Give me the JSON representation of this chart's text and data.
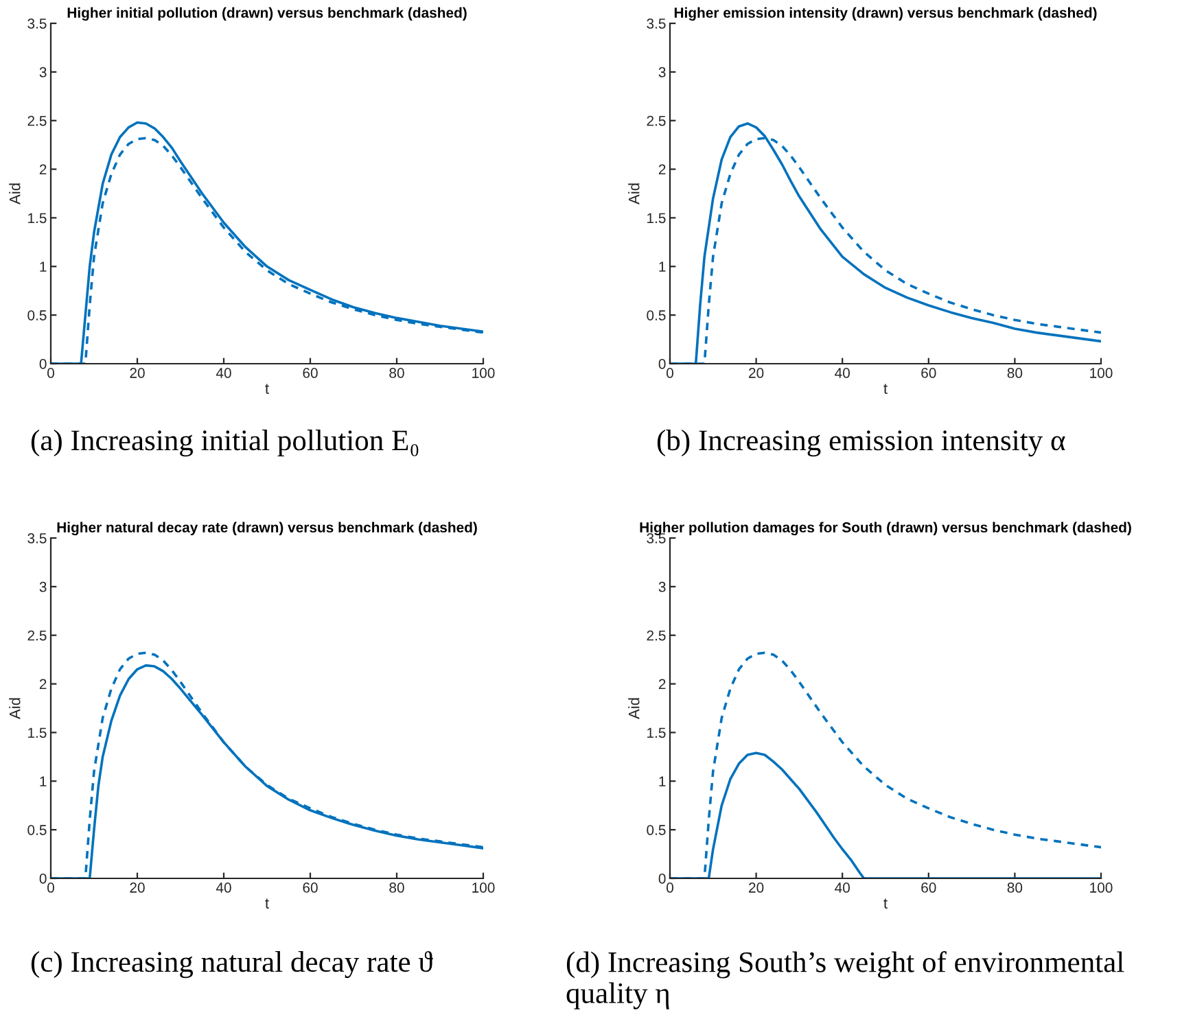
{
  "chart_data": [
    {
      "type": "line",
      "title": "Higher initial pollution (drawn) versus benchmark (dashed)",
      "xlabel": "t",
      "ylabel": "Aid",
      "xlim": [
        0,
        100
      ],
      "ylim": [
        0,
        3.5
      ],
      "xticks": [
        0,
        20,
        40,
        60,
        80,
        100
      ],
      "yticks": [
        0,
        0.5,
        1,
        1.5,
        2,
        2.5,
        3,
        3.5
      ],
      "grid": false,
      "annotations": [
        "(a) Increasing initial pollution E₀"
      ],
      "series": [
        {
          "color": "#0072bd",
          "line_style": "solid",
          "x": [
            0,
            7,
            8,
            9,
            10,
            12,
            14,
            16,
            18,
            20,
            22,
            24,
            26,
            28,
            30,
            35,
            40,
            45,
            50,
            55,
            60,
            65,
            70,
            75,
            80,
            85,
            90,
            95,
            100
          ],
          "values": [
            0,
            0,
            0.5,
            1.0,
            1.35,
            1.85,
            2.15,
            2.33,
            2.43,
            2.48,
            2.47,
            2.42,
            2.33,
            2.22,
            2.08,
            1.75,
            1.45,
            1.2,
            1.0,
            0.86,
            0.76,
            0.66,
            0.58,
            0.52,
            0.47,
            0.43,
            0.39,
            0.36,
            0.33
          ]
        },
        {
          "color": "#0072bd",
          "line_style": "dashed",
          "x": [
            0,
            8,
            9,
            10,
            12,
            14,
            16,
            18,
            20,
            22,
            24,
            26,
            28,
            30,
            35,
            40,
            45,
            50,
            55,
            60,
            65,
            70,
            75,
            80,
            85,
            90,
            95,
            100
          ],
          "values": [
            0,
            0,
            0.6,
            1.1,
            1.65,
            1.95,
            2.15,
            2.26,
            2.31,
            2.32,
            2.3,
            2.24,
            2.14,
            2.02,
            1.7,
            1.4,
            1.15,
            0.96,
            0.82,
            0.72,
            0.63,
            0.56,
            0.5,
            0.45,
            0.41,
            0.38,
            0.35,
            0.32
          ]
        }
      ]
    },
    {
      "type": "line",
      "title": "Higher emission intensity (drawn) versus benchmark (dashed)",
      "xlabel": "t",
      "ylabel": "Aid",
      "xlim": [
        0,
        100
      ],
      "ylim": [
        0,
        3.5
      ],
      "xticks": [
        0,
        20,
        40,
        60,
        80,
        100
      ],
      "yticks": [
        0,
        0.5,
        1,
        1.5,
        2,
        2.5,
        3,
        3.5
      ],
      "grid": false,
      "annotations": [
        "(b) Increasing emission intensity α"
      ],
      "series": [
        {
          "color": "#0072bd",
          "line_style": "solid",
          "x": [
            0,
            6,
            7,
            8,
            10,
            12,
            14,
            16,
            18,
            20,
            22,
            24,
            26,
            28,
            30,
            35,
            40,
            45,
            50,
            55,
            60,
            65,
            70,
            75,
            80,
            85,
            90,
            95,
            100
          ],
          "values": [
            0,
            0,
            0.6,
            1.1,
            1.7,
            2.1,
            2.33,
            2.44,
            2.47,
            2.43,
            2.34,
            2.2,
            2.05,
            1.88,
            1.72,
            1.38,
            1.1,
            0.92,
            0.78,
            0.68,
            0.6,
            0.53,
            0.47,
            0.42,
            0.36,
            0.32,
            0.29,
            0.26,
            0.23
          ]
        },
        {
          "color": "#0072bd",
          "line_style": "dashed",
          "x": [
            0,
            8,
            9,
            10,
            12,
            14,
            16,
            18,
            20,
            22,
            24,
            26,
            28,
            30,
            35,
            40,
            45,
            50,
            55,
            60,
            65,
            70,
            75,
            80,
            85,
            90,
            95,
            100
          ],
          "values": [
            0,
            0,
            0.6,
            1.1,
            1.65,
            1.95,
            2.15,
            2.26,
            2.31,
            2.32,
            2.3,
            2.24,
            2.14,
            2.02,
            1.7,
            1.4,
            1.15,
            0.96,
            0.82,
            0.72,
            0.63,
            0.56,
            0.5,
            0.45,
            0.41,
            0.38,
            0.35,
            0.32
          ]
        }
      ]
    },
    {
      "type": "line",
      "title": "Higher natural decay rate (drawn) versus benchmark (dashed)",
      "xlabel": "t",
      "ylabel": "Aid",
      "xlim": [
        0,
        100
      ],
      "ylim": [
        0,
        3.5
      ],
      "xticks": [
        0,
        20,
        40,
        60,
        80,
        100
      ],
      "yticks": [
        0,
        0.5,
        1,
        1.5,
        2,
        2.5,
        3,
        3.5
      ],
      "grid": false,
      "annotations": [
        "(c) Increasing natural decay rate ϑ"
      ],
      "series": [
        {
          "color": "#0072bd",
          "line_style": "solid",
          "x": [
            0,
            9,
            10,
            11,
            12,
            14,
            16,
            18,
            20,
            22,
            24,
            26,
            28,
            30,
            35,
            40,
            45,
            50,
            55,
            60,
            65,
            70,
            75,
            80,
            85,
            90,
            95,
            100
          ],
          "values": [
            0,
            0,
            0.5,
            0.95,
            1.25,
            1.62,
            1.88,
            2.05,
            2.15,
            2.19,
            2.18,
            2.13,
            2.05,
            1.95,
            1.68,
            1.4,
            1.15,
            0.95,
            0.81,
            0.7,
            0.62,
            0.55,
            0.49,
            0.44,
            0.4,
            0.37,
            0.34,
            0.31
          ]
        },
        {
          "color": "#0072bd",
          "line_style": "dashed",
          "x": [
            0,
            8,
            9,
            10,
            12,
            14,
            16,
            18,
            20,
            22,
            24,
            26,
            28,
            30,
            35,
            40,
            45,
            50,
            55,
            60,
            65,
            70,
            75,
            80,
            85,
            90,
            95,
            100
          ],
          "values": [
            0,
            0,
            0.6,
            1.1,
            1.65,
            1.95,
            2.15,
            2.26,
            2.31,
            2.32,
            2.3,
            2.24,
            2.14,
            2.02,
            1.7,
            1.4,
            1.15,
            0.96,
            0.82,
            0.72,
            0.63,
            0.56,
            0.5,
            0.45,
            0.41,
            0.38,
            0.35,
            0.32
          ]
        }
      ]
    },
    {
      "type": "line",
      "title": "Higher pollution damages for South (drawn) versus benchmark (dashed)",
      "xlabel": "t",
      "ylabel": "Aid",
      "xlim": [
        0,
        100
      ],
      "ylim": [
        0,
        3.5
      ],
      "xticks": [
        0,
        20,
        40,
        60,
        80,
        100
      ],
      "yticks": [
        0,
        0.5,
        1,
        1.5,
        2,
        2.5,
        3,
        3.5
      ],
      "grid": false,
      "annotations": [
        "(d) Increasing South’s weight of environmental quality η"
      ],
      "series": [
        {
          "color": "#0072bd",
          "line_style": "solid",
          "x": [
            0,
            9,
            10,
            12,
            14,
            16,
            18,
            20,
            22,
            24,
            26,
            28,
            30,
            32,
            34,
            36,
            38,
            40,
            42,
            44,
            45,
            100
          ],
          "values": [
            0,
            0,
            0.3,
            0.75,
            1.02,
            1.18,
            1.27,
            1.29,
            1.27,
            1.2,
            1.12,
            1.02,
            0.92,
            0.8,
            0.68,
            0.55,
            0.42,
            0.3,
            0.19,
            0.06,
            0,
            0
          ]
        },
        {
          "color": "#0072bd",
          "line_style": "dashed",
          "x": [
            0,
            8,
            9,
            10,
            12,
            14,
            16,
            18,
            20,
            22,
            24,
            26,
            28,
            30,
            35,
            40,
            45,
            50,
            55,
            60,
            65,
            70,
            75,
            80,
            85,
            90,
            95,
            100
          ],
          "values": [
            0,
            0,
            0.6,
            1.1,
            1.65,
            1.95,
            2.15,
            2.26,
            2.31,
            2.32,
            2.3,
            2.24,
            2.14,
            2.02,
            1.7,
            1.4,
            1.15,
            0.96,
            0.82,
            0.72,
            0.63,
            0.56,
            0.5,
            0.45,
            0.41,
            0.38,
            0.35,
            0.32
          ]
        }
      ]
    }
  ]
}
